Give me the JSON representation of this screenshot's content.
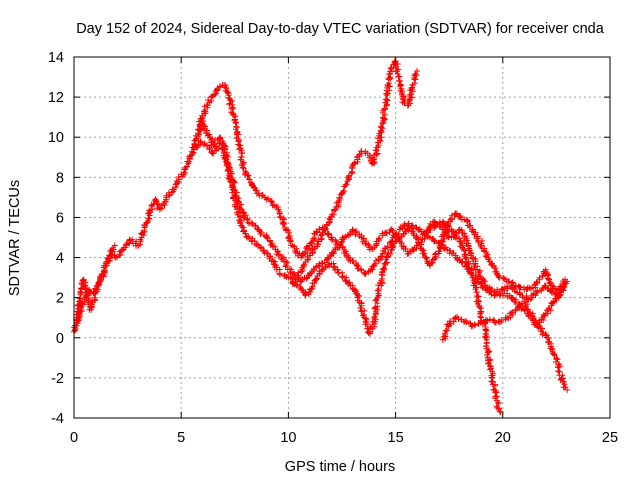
{
  "chart_data": {
    "type": "scatter",
    "title": "Day 152 of 2024, Sidereal Day-to-day VTEC variation (SDTVAR) for receiver cnda",
    "xlabel": "GPS time / hours",
    "ylabel": "SDTVAR / TECUs",
    "xlim": [
      0,
      25
    ],
    "ylim": [
      -4,
      14
    ],
    "xticks": [
      0,
      5,
      10,
      15,
      20,
      25
    ],
    "yticks": [
      -4,
      -2,
      0,
      2,
      4,
      6,
      8,
      10,
      12,
      14
    ],
    "grid": true,
    "marker": "+",
    "series": [
      {
        "name": "main-arc",
        "color": "#ff0000",
        "points": [
          [
            0.0,
            0.3
          ],
          [
            0.15,
            1.0
          ],
          [
            0.3,
            2.3
          ],
          [
            0.45,
            2.9
          ],
          [
            0.6,
            2.1
          ],
          [
            0.8,
            1.4
          ],
          [
            1.0,
            2.2
          ],
          [
            1.2,
            2.8
          ],
          [
            1.4,
            3.3
          ],
          [
            1.6,
            3.8
          ],
          [
            1.8,
            4.3
          ],
          [
            2.0,
            4.0
          ],
          [
            2.3,
            4.4
          ],
          [
            2.6,
            4.9
          ],
          [
            3.0,
            4.6
          ],
          [
            3.3,
            5.5
          ],
          [
            3.6,
            6.4
          ],
          [
            3.8,
            6.9
          ],
          [
            4.0,
            6.4
          ],
          [
            4.3,
            6.9
          ],
          [
            4.6,
            7.4
          ],
          [
            4.9,
            7.9
          ],
          [
            5.2,
            8.4
          ],
          [
            5.5,
            9.1
          ],
          [
            5.8,
            10.2
          ],
          [
            6.0,
            10.8
          ],
          [
            6.2,
            10.2
          ],
          [
            6.5,
            9.6
          ],
          [
            6.8,
            10.0
          ],
          [
            7.0,
            9.6
          ],
          [
            7.2,
            8.4
          ],
          [
            7.4,
            7.4
          ],
          [
            7.6,
            6.4
          ],
          [
            7.8,
            5.6
          ],
          [
            8.0,
            5.2
          ],
          [
            8.3,
            4.8
          ],
          [
            8.6,
            4.6
          ],
          [
            9.0,
            4.2
          ],
          [
            9.3,
            3.8
          ],
          [
            9.6,
            3.2
          ],
          [
            10.0,
            3.0
          ],
          [
            10.3,
            2.7
          ],
          [
            10.6,
            2.4
          ],
          [
            10.8,
            2.1
          ],
          [
            11.0,
            2.4
          ],
          [
            11.3,
            2.9
          ],
          [
            11.6,
            3.4
          ],
          [
            12.0,
            3.7
          ],
          [
            12.3,
            3.4
          ],
          [
            12.6,
            3.0
          ],
          [
            12.9,
            2.6
          ],
          [
            13.2,
            2.2
          ],
          [
            13.4,
            1.6
          ],
          [
            13.6,
            0.8
          ],
          [
            13.8,
            0.2
          ],
          [
            14.0,
            0.8
          ],
          [
            14.2,
            2.2
          ],
          [
            14.4,
            3.4
          ],
          [
            14.6,
            4.0
          ],
          [
            15.0,
            4.8
          ],
          [
            15.4,
            5.2
          ],
          [
            15.8,
            5.6
          ],
          [
            16.2,
            5.3
          ],
          [
            16.6,
            5.0
          ],
          [
            17.0,
            4.7
          ],
          [
            17.4,
            4.4
          ],
          [
            17.8,
            4.1
          ],
          [
            18.1,
            3.8
          ],
          [
            18.4,
            3.4
          ],
          [
            18.8,
            2.9
          ],
          [
            19.2,
            2.4
          ],
          [
            19.6,
            2.1
          ],
          [
            20.0,
            2.2
          ],
          [
            20.4,
            2.0
          ],
          [
            20.8,
            1.6
          ],
          [
            21.2,
            1.2
          ],
          [
            21.6,
            0.7
          ],
          [
            22.0,
            0.1
          ],
          [
            22.3,
            -0.6
          ],
          [
            22.6,
            -1.4
          ],
          [
            22.8,
            -2.2
          ],
          [
            23.0,
            -2.6
          ]
        ]
      },
      {
        "name": "upper-peak-arc",
        "color": "#ff0000",
        "points": [
          [
            5.8,
            10.4
          ],
          [
            6.0,
            11.0
          ],
          [
            6.2,
            11.6
          ],
          [
            6.4,
            12.0
          ],
          [
            6.6,
            12.3
          ],
          [
            6.8,
            12.5
          ],
          [
            7.0,
            12.6
          ],
          [
            7.2,
            12.2
          ],
          [
            7.4,
            11.2
          ],
          [
            7.6,
            10.2
          ],
          [
            7.8,
            9.0
          ],
          [
            8.0,
            8.2
          ],
          [
            8.3,
            7.6
          ],
          [
            8.6,
            7.2
          ],
          [
            8.9,
            7.0
          ],
          [
            9.2,
            6.8
          ],
          [
            9.6,
            6.2
          ],
          [
            9.9,
            5.4
          ],
          [
            10.2,
            4.6
          ],
          [
            10.6,
            4.0
          ],
          [
            11.0,
            4.6
          ],
          [
            11.3,
            5.3
          ],
          [
            11.6,
            5.5
          ],
          [
            12.0,
            5.0
          ],
          [
            12.4,
            4.6
          ],
          [
            12.8,
            4.0
          ],
          [
            13.2,
            3.6
          ],
          [
            13.6,
            3.2
          ],
          [
            14.0,
            3.6
          ],
          [
            14.4,
            4.2
          ],
          [
            14.8,
            4.8
          ],
          [
            15.2,
            5.4
          ],
          [
            15.6,
            5.7
          ],
          [
            16.0,
            5.0
          ],
          [
            16.3,
            4.2
          ],
          [
            16.6,
            3.6
          ],
          [
            17.0,
            4.3
          ],
          [
            17.4,
            5.6
          ],
          [
            17.8,
            6.2
          ],
          [
            18.2,
            5.9
          ],
          [
            18.6,
            5.4
          ],
          [
            19.0,
            4.7
          ],
          [
            19.4,
            3.8
          ],
          [
            19.8,
            3.1
          ],
          [
            20.2,
            2.8
          ],
          [
            20.6,
            2.6
          ],
          [
            21.0,
            2.4
          ],
          [
            21.4,
            2.5
          ],
          [
            21.7,
            2.9
          ],
          [
            22.0,
            3.4
          ],
          [
            22.3,
            2.6
          ],
          [
            22.6,
            2.1
          ],
          [
            22.9,
            2.9
          ]
        ]
      },
      {
        "name": "lower-peak-arc",
        "color": "#ff0000",
        "points": [
          [
            5.6,
            9.4
          ],
          [
            5.9,
            9.8
          ],
          [
            6.2,
            9.6
          ],
          [
            6.5,
            9.2
          ],
          [
            6.8,
            9.7
          ],
          [
            7.0,
            9.2
          ],
          [
            7.3,
            8.2
          ],
          [
            7.6,
            7.0
          ],
          [
            7.9,
            6.1
          ],
          [
            8.2,
            5.7
          ],
          [
            8.6,
            5.4
          ],
          [
            9.0,
            5.0
          ],
          [
            9.4,
            4.4
          ],
          [
            9.8,
            3.8
          ],
          [
            10.2,
            3.2
          ],
          [
            10.6,
            2.8
          ],
          [
            11.0,
            3.2
          ],
          [
            11.4,
            3.6
          ],
          [
            11.8,
            3.9
          ],
          [
            12.2,
            4.4
          ],
          [
            12.6,
            5.0
          ],
          [
            13.0,
            5.4
          ],
          [
            13.4,
            5.0
          ],
          [
            13.8,
            4.4
          ],
          [
            14.1,
            4.6
          ],
          [
            14.4,
            5.2
          ],
          [
            14.8,
            5.4
          ],
          [
            15.2,
            4.8
          ],
          [
            15.6,
            4.2
          ],
          [
            16.0,
            4.6
          ],
          [
            16.4,
            5.2
          ],
          [
            16.8,
            5.8
          ],
          [
            17.2,
            5.4
          ],
          [
            17.6,
            5.0
          ],
          [
            18.0,
            5.4
          ],
          [
            18.4,
            4.6
          ],
          [
            18.8,
            3.4
          ],
          [
            19.2,
            2.6
          ],
          [
            19.6,
            2.3
          ],
          [
            20.0,
            2.4
          ],
          [
            20.4,
            2.6
          ],
          [
            20.8,
            2.2
          ],
          [
            21.2,
            1.9
          ],
          [
            21.6,
            2.3
          ],
          [
            22.0,
            2.6
          ],
          [
            22.4,
            2.2
          ],
          [
            22.8,
            2.6
          ]
        ]
      },
      {
        "name": "steep-rise-arc",
        "color": "#ff0000",
        "points": [
          [
            10.2,
            2.7
          ],
          [
            10.6,
            3.3
          ],
          [
            11.0,
            4.1
          ],
          [
            11.4,
            4.8
          ],
          [
            11.8,
            5.6
          ],
          [
            12.2,
            6.4
          ],
          [
            12.5,
            7.2
          ],
          [
            12.8,
            8.0
          ],
          [
            13.1,
            8.7
          ],
          [
            13.4,
            9.3
          ],
          [
            13.7,
            9.2
          ],
          [
            14.0,
            8.7
          ],
          [
            14.2,
            9.6
          ],
          [
            14.4,
            10.7
          ],
          [
            14.6,
            12.1
          ],
          [
            14.8,
            13.4
          ],
          [
            15.0,
            13.8
          ],
          [
            15.2,
            12.8
          ],
          [
            15.4,
            11.7
          ],
          [
            15.6,
            11.6
          ],
          [
            15.8,
            12.6
          ],
          [
            16.0,
            13.3
          ]
        ]
      },
      {
        "name": "descending-branch",
        "color": "#ff0000",
        "points": [
          [
            16.4,
            5.2
          ],
          [
            16.8,
            5.6
          ],
          [
            17.2,
            5.8
          ],
          [
            17.6,
            5.4
          ],
          [
            18.0,
            4.8
          ],
          [
            18.3,
            4.0
          ],
          [
            18.6,
            3.0
          ],
          [
            18.9,
            1.6
          ],
          [
            19.2,
            0.2
          ],
          [
            19.4,
            -1.4
          ],
          [
            19.6,
            -2.6
          ],
          [
            19.8,
            -3.5
          ],
          [
            19.9,
            -3.7
          ]
        ]
      },
      {
        "name": "late-low-segment",
        "color": "#ff0000",
        "points": [
          [
            17.2,
            -0.1
          ],
          [
            17.5,
            0.7
          ],
          [
            17.8,
            1.0
          ],
          [
            18.2,
            0.8
          ],
          [
            18.6,
            0.6
          ],
          [
            19.0,
            0.8
          ],
          [
            19.4,
            0.9
          ],
          [
            19.8,
            0.8
          ],
          [
            20.2,
            1.0
          ],
          [
            20.6,
            1.4
          ],
          [
            21.0,
            1.8
          ],
          [
            21.3,
            1.2
          ],
          [
            21.6,
            0.6
          ],
          [
            22.0,
            1.2
          ],
          [
            22.4,
            1.8
          ],
          [
            22.8,
            2.4
          ],
          [
            23.0,
            2.8
          ]
        ]
      },
      {
        "name": "early-low-branch",
        "color": "#ff0000",
        "points": [
          [
            0.1,
            0.6
          ],
          [
            0.3,
            1.3
          ],
          [
            0.5,
            1.9
          ],
          [
            0.7,
            2.4
          ],
          [
            0.9,
            2.2
          ],
          [
            1.1,
            2.6
          ],
          [
            1.3,
            3.1
          ],
          [
            1.5,
            3.6
          ],
          [
            1.7,
            4.1
          ],
          [
            1.9,
            4.6
          ]
        ]
      }
    ]
  }
}
